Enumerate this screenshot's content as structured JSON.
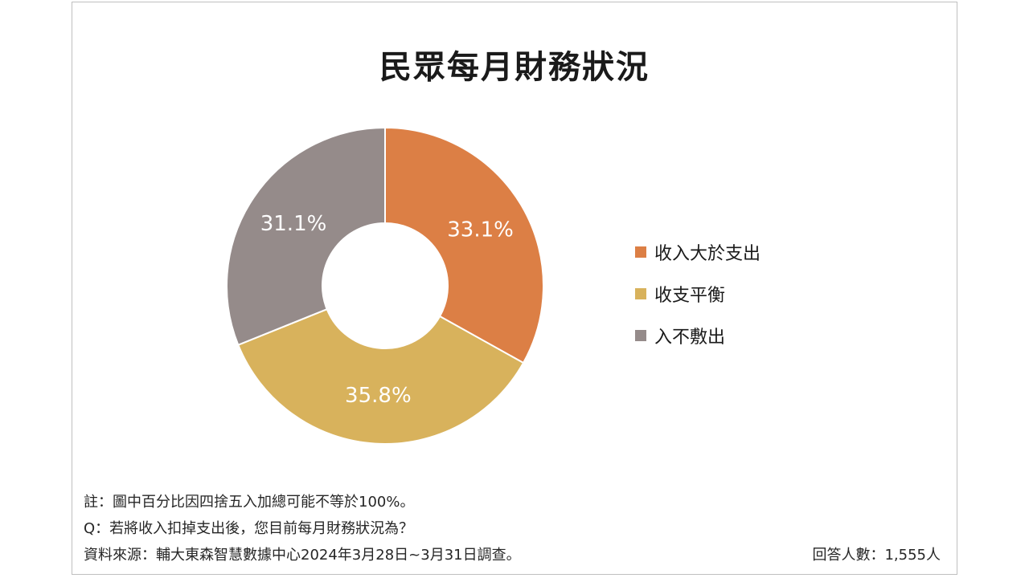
{
  "chart_data": {
    "type": "pie",
    "title": "民眾每月財務狀況",
    "donut": true,
    "categories": [
      "收入大於支出",
      "收支平衡",
      "入不敷出"
    ],
    "values": [
      33.1,
      35.8,
      31.1
    ],
    "labels": [
      "33.1%",
      "35.8%",
      "31.1%"
    ],
    "colors": [
      "#dc7f45",
      "#d8b25c",
      "#958b8a"
    ],
    "legend_placement": "right"
  },
  "notes": {
    "footnote": "註：圖中百分比因四捨五入加總可能不等於100%。",
    "question": "Q：若將收入扣掉支出後，您目前每月財務狀況為？",
    "source": "資料來源：輔大東森智慧數據中心2024年3月28日~3月31日調查。",
    "respondents": "回答人數：1,555人"
  }
}
